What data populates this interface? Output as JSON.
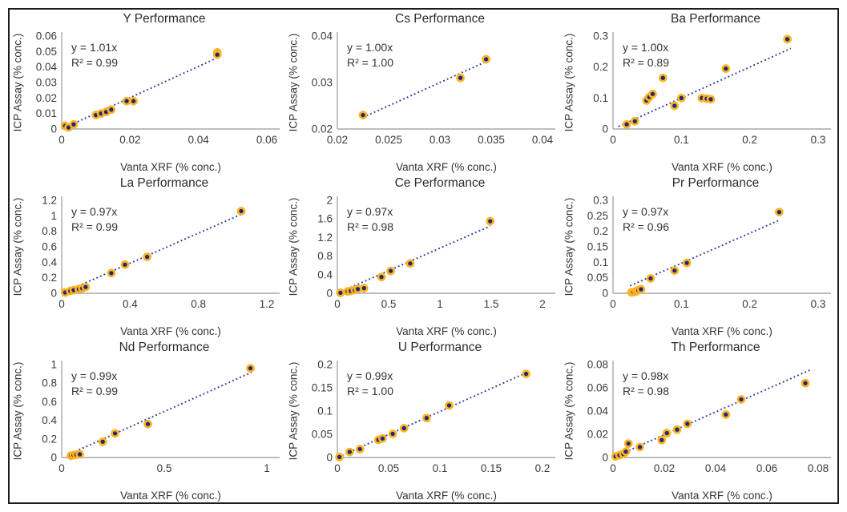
{
  "style": {
    "marker_fill": "#1b2a7b",
    "marker_ring": "#ffb321",
    "trend_color": "#2a3b9f",
    "axis_color": "#a8a8a8",
    "text_color": "#3a3a3a",
    "frame_border": "#1c1c1c"
  },
  "chart_data": [
    {
      "type": "scatter",
      "title": "Y Performance",
      "equation": "y = 1.01x",
      "r_squared": "R² = 0.99",
      "slope": 1.01,
      "xlabel": "Vanta XRF (% conc.)",
      "ylabel": "ICP Assay (% conc.)",
      "xlim": [
        0,
        0.06
      ],
      "ylim": [
        0,
        0.06
      ],
      "xticks": [
        0,
        0.02,
        0.04,
        0.06
      ],
      "yticks": [
        0,
        0.01,
        0.02,
        0.03,
        0.04,
        0.05,
        0.06
      ],
      "grid": false,
      "legend": false,
      "trend_x": [
        0.0025,
        0.0455
      ],
      "points": [
        [
          0.001,
          0.002
        ],
        [
          0.002,
          0.001
        ],
        [
          0.0035,
          0.003
        ],
        [
          0.01,
          0.009
        ],
        [
          0.0115,
          0.01
        ],
        [
          0.013,
          0.011
        ],
        [
          0.0145,
          0.0125
        ],
        [
          0.019,
          0.018
        ],
        [
          0.021,
          0.018
        ],
        [
          0.0455,
          0.0495
        ],
        [
          0.0455,
          0.048
        ]
      ]
    },
    {
      "type": "scatter",
      "title": "Cs Performance",
      "equation": "y = 1.00x",
      "r_squared": "R² = 1.00",
      "slope": 1.0,
      "xlabel": "Vanta XRF (% conc.)",
      "ylabel": "ICP Assay (% conc.)",
      "xlim": [
        0.02,
        0.04
      ],
      "ylim": [
        0.02,
        0.04
      ],
      "xticks": [
        0.02,
        0.025,
        0.03,
        0.035,
        0.04
      ],
      "yticks": [
        0.02,
        0.03,
        0.04
      ],
      "grid": false,
      "legend": false,
      "trend_x": [
        0.0225,
        0.0345
      ],
      "points": [
        [
          0.0225,
          0.023
        ],
        [
          0.032,
          0.031
        ],
        [
          0.0345,
          0.035
        ]
      ]
    },
    {
      "type": "scatter",
      "title": "Ba Performance",
      "equation": "y = 1.00x",
      "r_squared": "R² = 0.89",
      "slope": 1.0,
      "xlabel": "Vanta XRF (% conc.)",
      "ylabel": "ICP Assay (% conc.)",
      "xlim": [
        0,
        0.3
      ],
      "ylim": [
        0,
        0.3
      ],
      "xticks": [
        0,
        0.1,
        0.2,
        0.3
      ],
      "yticks": [
        0,
        0.1,
        0.2,
        0.3
      ],
      "grid": false,
      "legend": false,
      "trend_x": [
        0.008,
        0.26
      ],
      "points": [
        [
          0.02,
          0.015
        ],
        [
          0.032,
          0.025
        ],
        [
          0.049,
          0.092
        ],
        [
          0.053,
          0.103
        ],
        [
          0.058,
          0.113
        ],
        [
          0.073,
          0.165
        ],
        [
          0.09,
          0.075
        ],
        [
          0.1,
          0.1
        ],
        [
          0.13,
          0.1
        ],
        [
          0.137,
          0.098
        ],
        [
          0.143,
          0.096
        ],
        [
          0.165,
          0.195
        ],
        [
          0.255,
          0.29
        ]
      ]
    },
    {
      "type": "scatter",
      "title": "La Performance",
      "equation": "y = 0.97x",
      "r_squared": "R² = 0.99",
      "slope": 0.97,
      "xlabel": "Vanta XRF (% conc.)",
      "ylabel": "ICP Assay (% conc.)",
      "xlim": [
        0,
        1.2
      ],
      "ylim": [
        0,
        1.2
      ],
      "xticks": [
        0,
        0.4,
        0.8,
        1.2
      ],
      "yticks": [
        0,
        0.2,
        0.4,
        0.6,
        0.8,
        1,
        1.2
      ],
      "grid": false,
      "legend": false,
      "trend_x": [
        0.01,
        1.05
      ],
      "points": [
        [
          0.02,
          0.01
        ],
        [
          0.05,
          0.03
        ],
        [
          0.07,
          0.04
        ],
        [
          0.1,
          0.055
        ],
        [
          0.12,
          0.065
        ],
        [
          0.14,
          0.08
        ],
        [
          0.29,
          0.26
        ],
        [
          0.37,
          0.37
        ],
        [
          0.5,
          0.47
        ],
        [
          1.05,
          1.06
        ]
      ]
    },
    {
      "type": "scatter",
      "title": "Ce Performance",
      "equation": "y = 0.97x",
      "r_squared": "R² = 0.98",
      "slope": 0.97,
      "xlabel": "Vanta XRF (% conc.)",
      "ylabel": "ICP Assay (% conc.)",
      "xlim": [
        0,
        2
      ],
      "ylim": [
        0,
        2
      ],
      "xticks": [
        0,
        0.5,
        1,
        1.5,
        2
      ],
      "yticks": [
        0,
        0.4,
        0.8,
        1.2,
        1.6,
        2
      ],
      "grid": false,
      "legend": false,
      "trend_x": [
        0.02,
        1.49
      ],
      "points": [
        [
          0.03,
          0.01
        ],
        [
          0.1,
          0.04
        ],
        [
          0.13,
          0.05
        ],
        [
          0.17,
          0.07
        ],
        [
          0.2,
          0.09
        ],
        [
          0.26,
          0.11
        ],
        [
          0.43,
          0.35
        ],
        [
          0.52,
          0.48
        ],
        [
          0.71,
          0.64
        ],
        [
          1.49,
          1.55
        ]
      ]
    },
    {
      "type": "scatter",
      "title": "Pr Performance",
      "equation": "y = 0.97x",
      "r_squared": "R² = 0.96",
      "slope": 0.97,
      "xlabel": "Vanta XRF (% conc.)",
      "ylabel": "ICP Assay (% conc.)",
      "xlim": [
        0,
        0.3
      ],
      "ylim": [
        0,
        0.3
      ],
      "xticks": [
        0,
        0.1,
        0.2,
        0.3
      ],
      "yticks": [
        0,
        0.05,
        0.1,
        0.15,
        0.2,
        0.25,
        0.3
      ],
      "grid": false,
      "legend": false,
      "trend_x": [
        0.025,
        0.245
      ],
      "points": [
        [
          0.027,
          0.003
        ],
        [
          0.03,
          0.004
        ],
        [
          0.034,
          0.006
        ],
        [
          0.037,
          0.01
        ],
        [
          0.041,
          0.013
        ],
        [
          0.055,
          0.048
        ],
        [
          0.09,
          0.073
        ],
        [
          0.108,
          0.098
        ],
        [
          0.243,
          0.262
        ]
      ]
    },
    {
      "type": "scatter",
      "title": "Nd Performance",
      "equation": "y = 0.99x",
      "r_squared": "R² = 0.99",
      "slope": 0.99,
      "xlabel": "Vanta XRF (% conc.)",
      "ylabel": "ICP Assay (% conc.)",
      "xlim": [
        0,
        1
      ],
      "ylim": [
        0,
        1
      ],
      "xticks": [
        0,
        0.5,
        1
      ],
      "yticks": [
        0,
        0.2,
        0.4,
        0.6,
        0.8,
        1
      ],
      "grid": false,
      "legend": false,
      "trend_x": [
        0.03,
        0.925
      ],
      "points": [
        [
          0.045,
          0.02
        ],
        [
          0.058,
          0.025
        ],
        [
          0.072,
          0.03
        ],
        [
          0.088,
          0.035
        ],
        [
          0.2,
          0.17
        ],
        [
          0.26,
          0.26
        ],
        [
          0.42,
          0.36
        ],
        [
          0.92,
          0.96
        ]
      ]
    },
    {
      "type": "scatter",
      "title": "U Performance",
      "equation": "y = 0.99x",
      "r_squared": "R² = 1.00",
      "slope": 0.99,
      "xlabel": "Vanta XRF (% conc.)",
      "ylabel": "ICP Assay (% conc.)",
      "xlim": [
        0,
        0.2
      ],
      "ylim": [
        0,
        0.2
      ],
      "xticks": [
        0,
        0.05,
        0.1,
        0.15,
        0.2
      ],
      "yticks": [
        0,
        0.05,
        0.1,
        0.15,
        0.2
      ],
      "grid": false,
      "legend": false,
      "trend_x": [
        0.001,
        0.185
      ],
      "points": [
        [
          0.002,
          0.001
        ],
        [
          0.012,
          0.012
        ],
        [
          0.022,
          0.018
        ],
        [
          0.04,
          0.038
        ],
        [
          0.044,
          0.041
        ],
        [
          0.054,
          0.051
        ],
        [
          0.065,
          0.063
        ],
        [
          0.087,
          0.085
        ],
        [
          0.109,
          0.112
        ],
        [
          0.184,
          0.18
        ]
      ]
    },
    {
      "type": "scatter",
      "title": "Th Performance",
      "equation": "y = 0.98x",
      "r_squared": "R² = 0.98",
      "slope": 0.98,
      "xlabel": "Vanta XRF (% conc.)",
      "ylabel": "ICP Assay (% conc.)",
      "xlim": [
        0,
        0.08
      ],
      "ylim": [
        0,
        0.08
      ],
      "xticks": [
        0,
        0.02,
        0.04,
        0.06,
        0.08
      ],
      "yticks": [
        0,
        0.02,
        0.04,
        0.06,
        0.08
      ],
      "grid": false,
      "legend": false,
      "trend_x": [
        0.0005,
        0.077
      ],
      "points": [
        [
          0.001,
          0.001
        ],
        [
          0.0025,
          0.002
        ],
        [
          0.004,
          0.003
        ],
        [
          0.005,
          0.005
        ],
        [
          0.006,
          0.012
        ],
        [
          0.0105,
          0.009
        ],
        [
          0.019,
          0.015
        ],
        [
          0.021,
          0.021
        ],
        [
          0.025,
          0.024
        ],
        [
          0.029,
          0.029
        ],
        [
          0.044,
          0.037
        ],
        [
          0.05,
          0.05
        ],
        [
          0.075,
          0.064
        ]
      ]
    }
  ]
}
